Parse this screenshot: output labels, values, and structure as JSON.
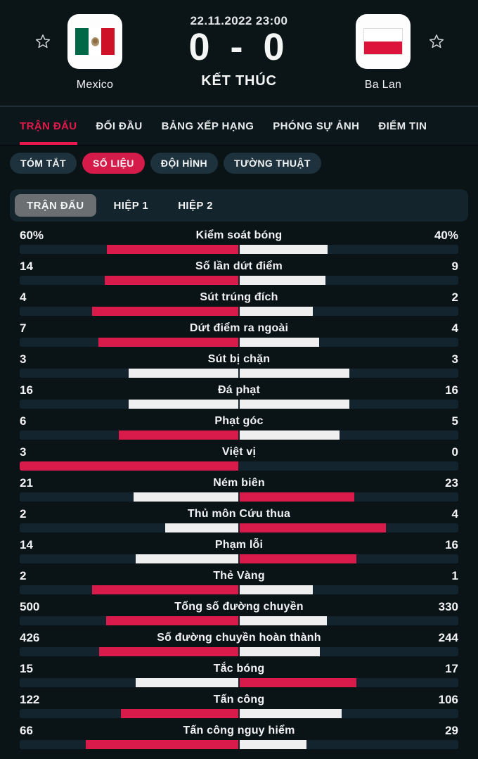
{
  "header": {
    "datetime": "22.11.2022 23:00",
    "score": "0 - 0",
    "status": "KẾT THÚC",
    "home": {
      "name": "Mexico"
    },
    "away": {
      "name": "Ba Lan"
    }
  },
  "tabs": [
    {
      "id": "tran-dau",
      "label": "TRẬN ĐẤU",
      "active": true
    },
    {
      "id": "doi-dau",
      "label": "ĐỐI ĐẦU",
      "active": false
    },
    {
      "id": "bang-xep-hang",
      "label": "BẢNG XẾP HẠNG",
      "active": false
    },
    {
      "id": "phong-su-anh",
      "label": "PHÓNG SỰ ẢNH",
      "active": false
    },
    {
      "id": "diem-tin",
      "label": "ĐIỂM TIN",
      "active": false
    }
  ],
  "subtabs": [
    {
      "id": "tom-tat",
      "label": "TÓM TẮT",
      "active": false
    },
    {
      "id": "so-lieu",
      "label": "SỐ LIỆU",
      "active": true
    },
    {
      "id": "doi-hinh",
      "label": "ĐỘI HÌNH",
      "active": false
    },
    {
      "id": "tuong-thuat",
      "label": "TƯỜNG THUẬT",
      "active": false
    }
  ],
  "segments": [
    {
      "id": "tran-dau",
      "label": "TRẬN ĐẤU",
      "active": true
    },
    {
      "id": "hiep-1",
      "label": "HIỆP 1",
      "active": false
    },
    {
      "id": "hiep-2",
      "label": "HIỆP 2",
      "active": false
    }
  ],
  "stats": [
    {
      "id": "possession",
      "label": "Kiểm soát bóng",
      "home": "60%",
      "away": "40%"
    },
    {
      "id": "total-shots",
      "label": "Số lần dứt điểm",
      "home": "14",
      "away": "9"
    },
    {
      "id": "shots-on-target",
      "label": "Sút trúng đích",
      "home": "4",
      "away": "2"
    },
    {
      "id": "shots-off-target",
      "label": "Dứt điểm ra ngoài",
      "home": "7",
      "away": "4"
    },
    {
      "id": "blocked-shots",
      "label": "Sút bị chặn",
      "home": "3",
      "away": "3"
    },
    {
      "id": "free-kicks",
      "label": "Đá phạt",
      "home": "16",
      "away": "16"
    },
    {
      "id": "corners",
      "label": "Phạt góc",
      "home": "6",
      "away": "5"
    },
    {
      "id": "offsides",
      "label": "Việt vị",
      "home": "3",
      "away": "0"
    },
    {
      "id": "throw-ins",
      "label": "Ném biên",
      "home": "21",
      "away": "23"
    },
    {
      "id": "goalkeeper-saves",
      "label": "Thủ môn Cứu thua",
      "home": "2",
      "away": "4"
    },
    {
      "id": "fouls",
      "label": "Phạm lỗi",
      "home": "14",
      "away": "16"
    },
    {
      "id": "yellow-cards",
      "label": "Thẻ Vàng",
      "home": "2",
      "away": "1"
    },
    {
      "id": "total-passes",
      "label": "Tổng số đường chuyền",
      "home": "500",
      "away": "330"
    },
    {
      "id": "completed-passes",
      "label": "Số đường chuyền hoàn thành",
      "home": "426",
      "away": "244"
    },
    {
      "id": "tackles",
      "label": "Tắc bóng",
      "home": "15",
      "away": "17"
    },
    {
      "id": "attacks",
      "label": "Tấn công",
      "home": "122",
      "away": "106"
    },
    {
      "id": "dangerous-attacks",
      "label": "Tấn công nguy hiểm",
      "home": "66",
      "away": "29"
    }
  ],
  "colors": {
    "accent_red": "#e5194b",
    "bar_red": "#d81b4a",
    "bar_white": "#efefef",
    "bar_track": "#13242e",
    "chip_bg": "#1d323c",
    "chip_active": "#d41b4a",
    "segment_bg": "#14242d",
    "segment_active": "#6c6f71",
    "page_bg": "#0a1316",
    "flag_mexico_green": "#006847",
    "flag_mexico_red": "#ce1126",
    "flag_poland_red": "#dc143c"
  }
}
